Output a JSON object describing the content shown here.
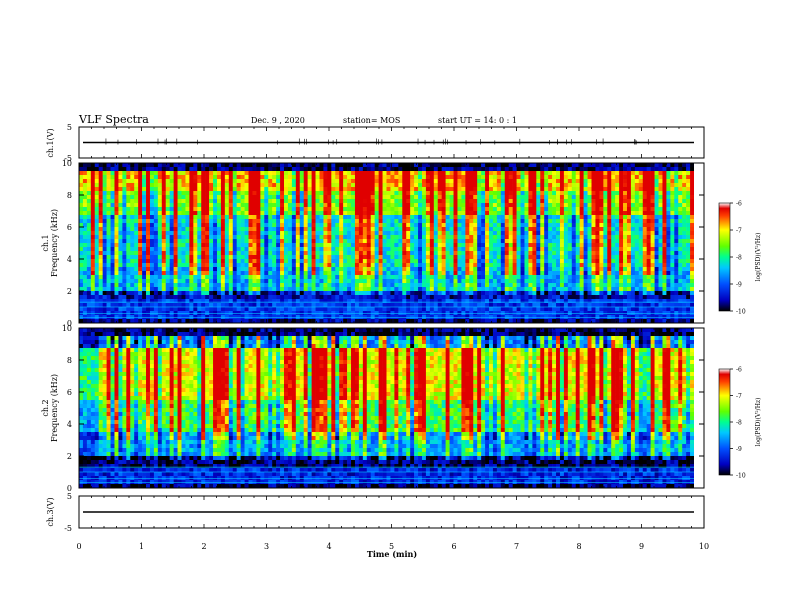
{
  "header": {
    "title": "VLF Spectra",
    "date": "Dec. 9 , 2020",
    "station": "station= MOS",
    "start": "start  UT =   14: 0  : 1"
  },
  "colors": {
    "background": "#ffffff",
    "axes": "#000000",
    "trace": "#000000"
  },
  "chart_data": [
    {
      "type": "line",
      "panel": "ch1-voltage",
      "ylabel": "ch.1(V)",
      "ylim": [
        -5,
        5
      ],
      "yticks": [
        "5",
        "-5"
      ],
      "x": [
        0,
        10
      ],
      "y": [
        0,
        0
      ],
      "xlim": [
        0,
        10
      ]
    },
    {
      "type": "heatmap",
      "panel": "ch1-spectrogram",
      "ylabel": "ch.1\nFrequency (kHz)",
      "ylabel_lines": [
        "ch.1",
        "Frequency (kHz)"
      ],
      "ylim": [
        0,
        10
      ],
      "xlim": [
        0,
        9.85
      ],
      "yticks": [
        "0",
        "2",
        "4",
        "6",
        "8",
        "10"
      ],
      "colorbar": {
        "label": "log(PSD)(V²/Hz)",
        "range": [
          -10,
          -6
        ],
        "ticks": [
          "-6",
          "-7",
          "-8",
          "-9",
          "-10"
        ]
      }
    },
    {
      "type": "heatmap",
      "panel": "ch2-spectrogram",
      "ylabel": "ch.2\nFrequency (kHz)",
      "ylabel_lines": [
        "ch.2",
        "Frequency (kHz)"
      ],
      "ylim": [
        0,
        10
      ],
      "xlim": [
        0,
        9.85
      ],
      "yticks": [
        "0",
        "2",
        "4",
        "6",
        "8",
        "10"
      ],
      "colorbar": {
        "label": "log(PSD)(V²/Hz)",
        "range": [
          -10,
          -6
        ],
        "ticks": [
          "-6",
          "-7",
          "-8",
          "-9",
          "-10"
        ]
      }
    },
    {
      "type": "line",
      "panel": "ch3-voltage",
      "ylabel": "ch.3(V)",
      "ylim": [
        -5,
        5
      ],
      "yticks": [
        "5",
        "-5"
      ],
      "x": [
        0,
        10
      ],
      "y": [
        0,
        0
      ],
      "xlim": [
        0,
        10
      ]
    }
  ],
  "xaxis": {
    "label": "Time  (min)",
    "ticks": [
      "0",
      "1",
      "2",
      "3",
      "4",
      "5",
      "6",
      "7",
      "8",
      "9",
      "10"
    ]
  }
}
